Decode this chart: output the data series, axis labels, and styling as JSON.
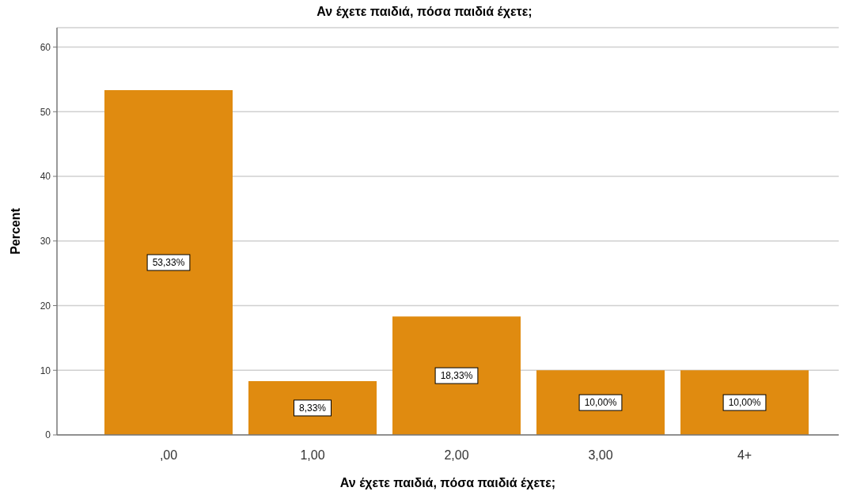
{
  "chart_data": {
    "type": "bar",
    "title": "Αν έχετε παιδιά, πόσα παιδιά έχετε;",
    "xlabel": "Αν έχετε παιδιά, πόσα παιδιά έχετε;",
    "ylabel": "Percent",
    "categories": [
      ",00",
      "1,00",
      "2,00",
      "3,00",
      "4+"
    ],
    "values": [
      53.33,
      8.33,
      18.33,
      10,
      10
    ],
    "value_labels": [
      "53,33%",
      "8,33%",
      "18,33%",
      "10,00%",
      "10,00%"
    ],
    "color": "#e08b10",
    "ylim": [
      0,
      63
    ],
    "yticks": [
      0,
      10,
      20,
      30,
      40,
      50,
      60
    ],
    "grid": "y"
  }
}
